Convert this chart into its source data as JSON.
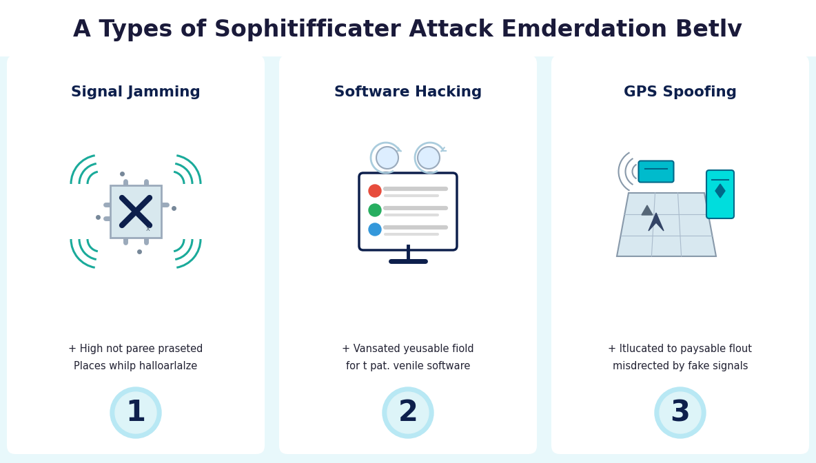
{
  "title": "A Types of Sophitifficater Attack Emderdation Betlv",
  "title_fontsize": 24,
  "title_color": "#1a1a3a",
  "bg_color": "#e8f8fb",
  "card_bg": "#ffffff",
  "card_border": "#b8e8f0",
  "teal_color": "#1aaa9a",
  "dark_blue": "#0d1f4c",
  "gray_dot": "#778899",
  "cards": [
    {
      "title": "Signal Jamming",
      "description": "+ High not paree praseted\nPlaces whilp halloarlalze",
      "number": "1"
    },
    {
      "title": "Software Hacking",
      "description": "+ Vansated yeusable fiold\nfor t pat. venile software",
      "number": "2"
    },
    {
      "title": "GPS Spoofing",
      "description": "+ Itlucated to paysable flout\nmisdrected by fake signals",
      "number": "3"
    }
  ]
}
